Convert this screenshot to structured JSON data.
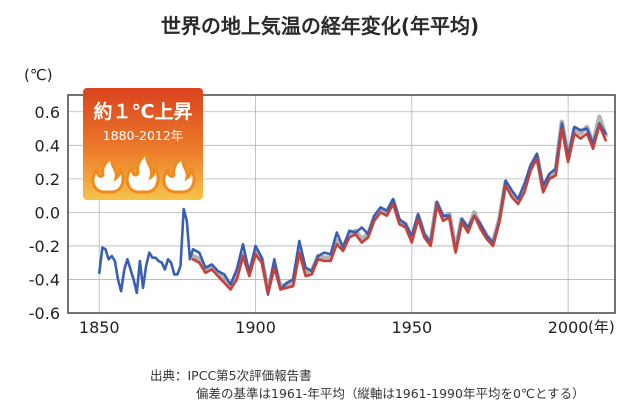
{
  "chart_data": {
    "type": "line",
    "title": "世界の地上気温の経年変化(年平均)",
    "ylabel": "(℃)",
    "xlabel": "(年)",
    "xlim": [
      1840,
      2015
    ],
    "ylim": [
      -0.6,
      0.7
    ],
    "x_ticks": [
      1850,
      1900,
      1950,
      2000
    ],
    "y_ticks": [
      -0.6,
      -0.4,
      -0.2,
      0.0,
      0.2,
      0.4,
      0.6
    ],
    "x_tick_labels": [
      "1850",
      "1900",
      "1950",
      "2000"
    ],
    "y_tick_labels": [
      "-0.6",
      "-0.4",
      "-0.2",
      "0.0",
      "0.2",
      "0.4",
      "0.6"
    ],
    "grid": true,
    "legend": "none",
    "annotation": {
      "line1": "約１℃上昇",
      "line2": "1880-2012年",
      "fire_color": "#f08a1e",
      "box_color": "#e65a1e"
    },
    "series": [
      {
        "color": "#3a5fb0",
        "x": [
          1850,
          1851,
          1852,
          1853,
          1854,
          1855,
          1856,
          1857,
          1858,
          1859,
          1860,
          1861,
          1862,
          1863,
          1864,
          1865,
          1866,
          1867,
          1868,
          1869,
          1870,
          1871,
          1872,
          1873,
          1874,
          1875,
          1876,
          1877,
          1878,
          1879,
          1880,
          1882,
          1884,
          1886,
          1888,
          1890,
          1892,
          1894,
          1896,
          1898,
          1900,
          1902,
          1904,
          1906,
          1908,
          1910,
          1912,
          1914,
          1916,
          1918,
          1920,
          1922,
          1924,
          1926,
          1928,
          1930,
          1932,
          1934,
          1936,
          1938,
          1940,
          1942,
          1944,
          1946,
          1948,
          1950,
          1952,
          1954,
          1956,
          1958,
          1960,
          1962,
          1964,
          1966,
          1968,
          1970,
          1972,
          1974,
          1976,
          1978,
          1980,
          1982,
          1984,
          1986,
          1988,
          1990,
          1992,
          1994,
          1996,
          1998,
          2000,
          2002,
          2004,
          2006,
          2008,
          2010,
          2012
        ],
        "values": [
          -0.36,
          -0.21,
          -0.22,
          -0.28,
          -0.26,
          -0.29,
          -0.4,
          -0.47,
          -0.34,
          -0.28,
          -0.34,
          -0.4,
          -0.48,
          -0.29,
          -0.45,
          -0.32,
          -0.24,
          -0.27,
          -0.27,
          -0.29,
          -0.3,
          -0.34,
          -0.28,
          -0.3,
          -0.37,
          -0.37,
          -0.32,
          0.02,
          -0.05,
          -0.28,
          -0.22,
          -0.24,
          -0.33,
          -0.31,
          -0.35,
          -0.37,
          -0.43,
          -0.34,
          -0.19,
          -0.36,
          -0.2,
          -0.27,
          -0.49,
          -0.28,
          -0.46,
          -0.42,
          -0.4,
          -0.17,
          -0.33,
          -0.35,
          -0.26,
          -0.24,
          -0.25,
          -0.12,
          -0.21,
          -0.11,
          -0.12,
          -0.09,
          -0.13,
          -0.02,
          0.03,
          0.01,
          0.08,
          -0.04,
          -0.07,
          -0.14,
          -0.01,
          -0.13,
          -0.18,
          0.06,
          -0.02,
          -0.02,
          -0.23,
          -0.04,
          -0.09,
          -0.02,
          -0.07,
          -0.14,
          -0.18,
          -0.05,
          0.19,
          0.13,
          0.08,
          0.17,
          0.28,
          0.35,
          0.16,
          0.23,
          0.26,
          0.53,
          0.33,
          0.51,
          0.49,
          0.5,
          0.41,
          0.53,
          0.47
        ]
      },
      {
        "color": "#c8403a",
        "x": [
          1880,
          1882,
          1884,
          1886,
          1888,
          1890,
          1892,
          1894,
          1896,
          1898,
          1900,
          1902,
          1904,
          1906,
          1908,
          1910,
          1912,
          1914,
          1916,
          1918,
          1920,
          1922,
          1924,
          1926,
          1928,
          1930,
          1932,
          1934,
          1936,
          1938,
          1940,
          1942,
          1944,
          1946,
          1948,
          1950,
          1952,
          1954,
          1956,
          1958,
          1960,
          1962,
          1964,
          1966,
          1968,
          1970,
          1972,
          1974,
          1976,
          1978,
          1980,
          1982,
          1984,
          1986,
          1988,
          1990,
          1992,
          1994,
          1996,
          1998,
          2000,
          2002,
          2004,
          2006,
          2008,
          2010,
          2012
        ],
        "values": [
          -0.28,
          -0.3,
          -0.36,
          -0.34,
          -0.38,
          -0.42,
          -0.46,
          -0.4,
          -0.26,
          -0.38,
          -0.25,
          -0.3,
          -0.48,
          -0.33,
          -0.46,
          -0.45,
          -0.44,
          -0.24,
          -0.38,
          -0.37,
          -0.28,
          -0.29,
          -0.29,
          -0.19,
          -0.23,
          -0.15,
          -0.13,
          -0.18,
          -0.15,
          -0.05,
          0.0,
          -0.02,
          0.05,
          -0.07,
          -0.09,
          -0.18,
          -0.04,
          -0.15,
          -0.2,
          0.04,
          -0.05,
          -0.03,
          -0.24,
          -0.06,
          -0.12,
          -0.02,
          -0.1,
          -0.16,
          -0.2,
          -0.06,
          0.16,
          0.09,
          0.05,
          0.12,
          0.25,
          0.32,
          0.12,
          0.2,
          0.22,
          0.5,
          0.3,
          0.47,
          0.44,
          0.47,
          0.38,
          0.52,
          0.43
        ]
      },
      {
        "color": "#9a9a9a",
        "x": [
          1880,
          1882,
          1884,
          1886,
          1888,
          1890,
          1892,
          1894,
          1896,
          1898,
          1900,
          1902,
          1904,
          1906,
          1908,
          1910,
          1912,
          1914,
          1916,
          1918,
          1920,
          1922,
          1924,
          1926,
          1928,
          1930,
          1932,
          1934,
          1936,
          1938,
          1940,
          1942,
          1944,
          1946,
          1948,
          1950,
          1952,
          1954,
          1956,
          1958,
          1960,
          1962,
          1964,
          1966,
          1968,
          1970,
          1972,
          1974,
          1976,
          1978,
          1980,
          1982,
          1984,
          1986,
          1988,
          1990,
          1992,
          1994,
          1996,
          1998,
          2000,
          2002,
          2004,
          2006,
          2008,
          2010,
          2012
        ],
        "values": [
          -0.26,
          -0.28,
          -0.35,
          -0.32,
          -0.37,
          -0.4,
          -0.45,
          -0.38,
          -0.25,
          -0.36,
          -0.23,
          -0.28,
          -0.47,
          -0.31,
          -0.44,
          -0.43,
          -0.42,
          -0.22,
          -0.36,
          -0.35,
          -0.26,
          -0.27,
          -0.27,
          -0.17,
          -0.21,
          -0.13,
          -0.11,
          -0.16,
          -0.13,
          -0.03,
          0.02,
          0.0,
          0.07,
          -0.05,
          -0.07,
          -0.16,
          -0.02,
          -0.13,
          -0.18,
          0.06,
          -0.03,
          -0.01,
          -0.22,
          -0.04,
          -0.1,
          0.0,
          -0.08,
          -0.14,
          -0.18,
          -0.04,
          0.18,
          0.11,
          0.07,
          0.14,
          0.27,
          0.34,
          0.14,
          0.22,
          0.24,
          0.54,
          0.32,
          0.5,
          0.47,
          0.51,
          0.41,
          0.57,
          0.46
        ]
      }
    ]
  },
  "source": {
    "line1": "出典：IPCC第5次評価報告書",
    "line2": "偏差の基準は1961-年平均（縦軸は1961-1990年平均を0℃とする）"
  }
}
